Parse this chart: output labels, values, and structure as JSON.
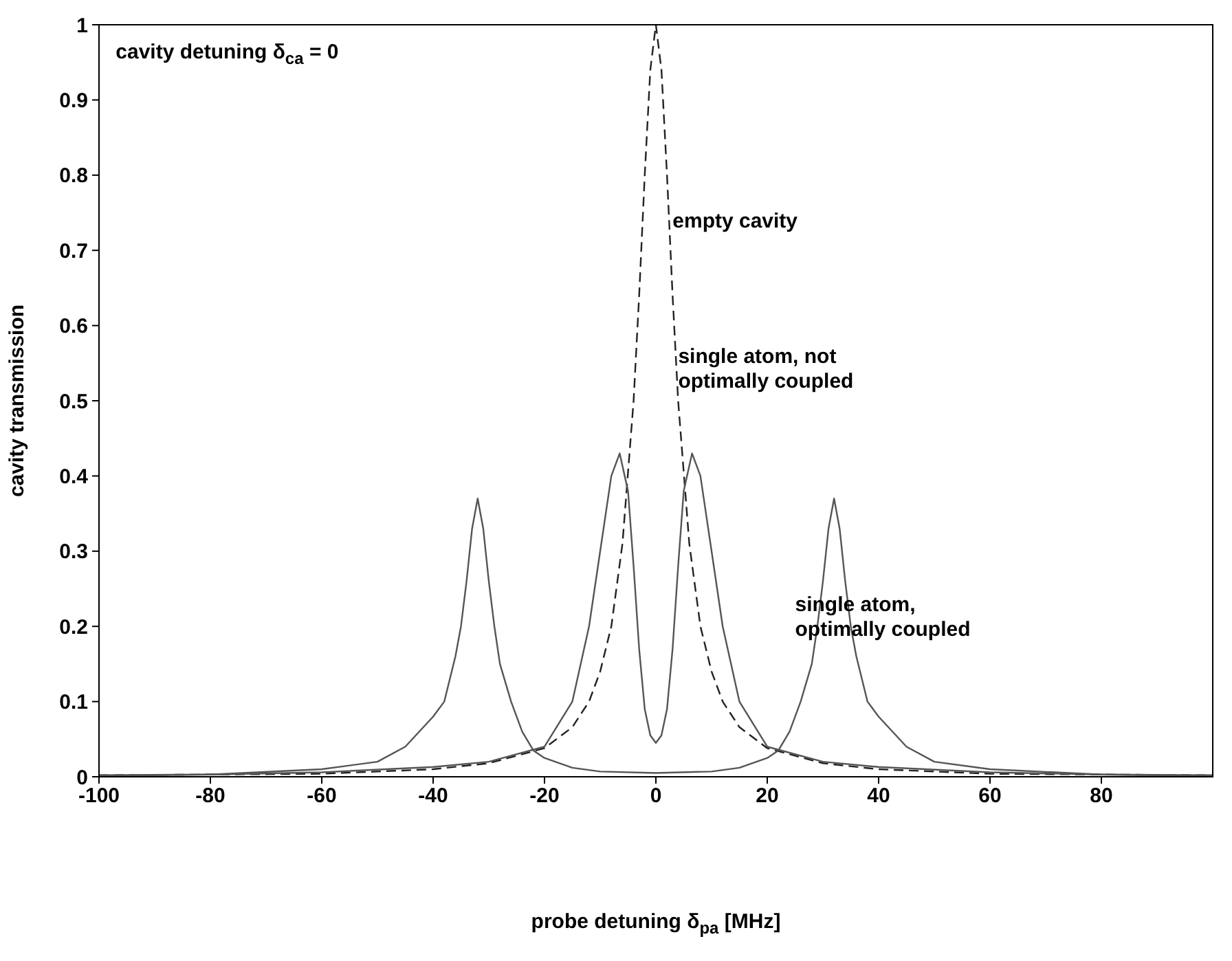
{
  "chart_data": {
    "type": "line",
    "xlabel": "probe detuning δ$_{pa}$ [MHz]",
    "ylabel": "cavity transmission",
    "xlim": [
      -100,
      100
    ],
    "xticks": [
      -100,
      -80,
      -60,
      -40,
      -20,
      0,
      20,
      40,
      60,
      80
    ],
    "ylim": [
      0,
      1
    ],
    "yticks": [
      0,
      0.1,
      0.2,
      0.3,
      0.4,
      0.5,
      0.6,
      0.7,
      0.8,
      0.9,
      1
    ],
    "grid": false,
    "marker": "none",
    "annotations": [
      "cavity detuning δ$_{ca}$ = 0",
      {
        "text": "empty cavity",
        "x": 3,
        "y": 0.73
      },
      "single atom, not\noptimally coupled",
      "single atom,\noptimally coupled"
    ],
    "series": [
      {
        "color": "#222222",
        "line_style": "dashed",
        "x": [
          -100,
          -80,
          -60,
          -40,
          -30,
          -20,
          -15,
          -12,
          -10,
          -8,
          -6,
          -4,
          -3,
          -2,
          -1,
          0,
          1,
          2,
          3,
          4,
          6,
          8,
          10,
          12,
          15,
          20,
          30,
          40,
          60,
          80,
          100
        ],
        "values": [
          0.002,
          0.003,
          0.004,
          0.01,
          0.018,
          0.038,
          0.066,
          0.1,
          0.14,
          0.2,
          0.31,
          0.5,
          0.64,
          0.8,
          0.94,
          1,
          0.94,
          0.8,
          0.64,
          0.5,
          0.31,
          0.2,
          0.14,
          0.1,
          0.066,
          0.038,
          0.018,
          0.01,
          0.004,
          0.003,
          0.002
        ]
      },
      {
        "color": "#555555",
        "line_style": "solid",
        "x": [
          -100,
          -80,
          -60,
          -40,
          -30,
          -20,
          -15,
          -12,
          -10,
          -8,
          -6.5,
          -5,
          -4,
          -3,
          -2,
          -1,
          0,
          1,
          2,
          3,
          4,
          5,
          6.5,
          8,
          10,
          12,
          15,
          20,
          30,
          40,
          60,
          80,
          100
        ],
        "values": [
          0.002,
          0.003,
          0.006,
          0.013,
          0.02,
          0.04,
          0.1,
          0.2,
          0.3,
          0.4,
          0.43,
          0.38,
          0.28,
          0.17,
          0.09,
          0.055,
          0.045,
          0.055,
          0.09,
          0.17,
          0.28,
          0.38,
          0.43,
          0.4,
          0.3,
          0.2,
          0.1,
          0.04,
          0.02,
          0.013,
          0.006,
          0.003,
          0.002
        ]
      },
      {
        "color": "#555555",
        "line_style": "solid",
        "x": [
          -100,
          -80,
          -60,
          -50,
          -45,
          -40,
          -38,
          -36,
          -35,
          -34,
          -33,
          -32,
          -31,
          -30,
          -29,
          -28,
          -26,
          -24,
          -22,
          -20,
          -15,
          -10,
          0,
          10,
          15,
          20,
          22,
          24,
          26,
          28,
          29,
          30,
          31,
          32,
          33,
          34,
          35,
          36,
          38,
          40,
          45,
          50,
          60,
          80,
          100
        ],
        "values": [
          0.001,
          0.003,
          0.01,
          0.02,
          0.04,
          0.08,
          0.1,
          0.16,
          0.2,
          0.26,
          0.33,
          0.37,
          0.33,
          0.26,
          0.2,
          0.15,
          0.1,
          0.06,
          0.035,
          0.025,
          0.012,
          0.007,
          0.005,
          0.007,
          0.012,
          0.025,
          0.035,
          0.06,
          0.1,
          0.15,
          0.2,
          0.26,
          0.33,
          0.37,
          0.33,
          0.26,
          0.2,
          0.16,
          0.1,
          0.08,
          0.04,
          0.02,
          0.01,
          0.003,
          0.001
        ]
      }
    ]
  }
}
